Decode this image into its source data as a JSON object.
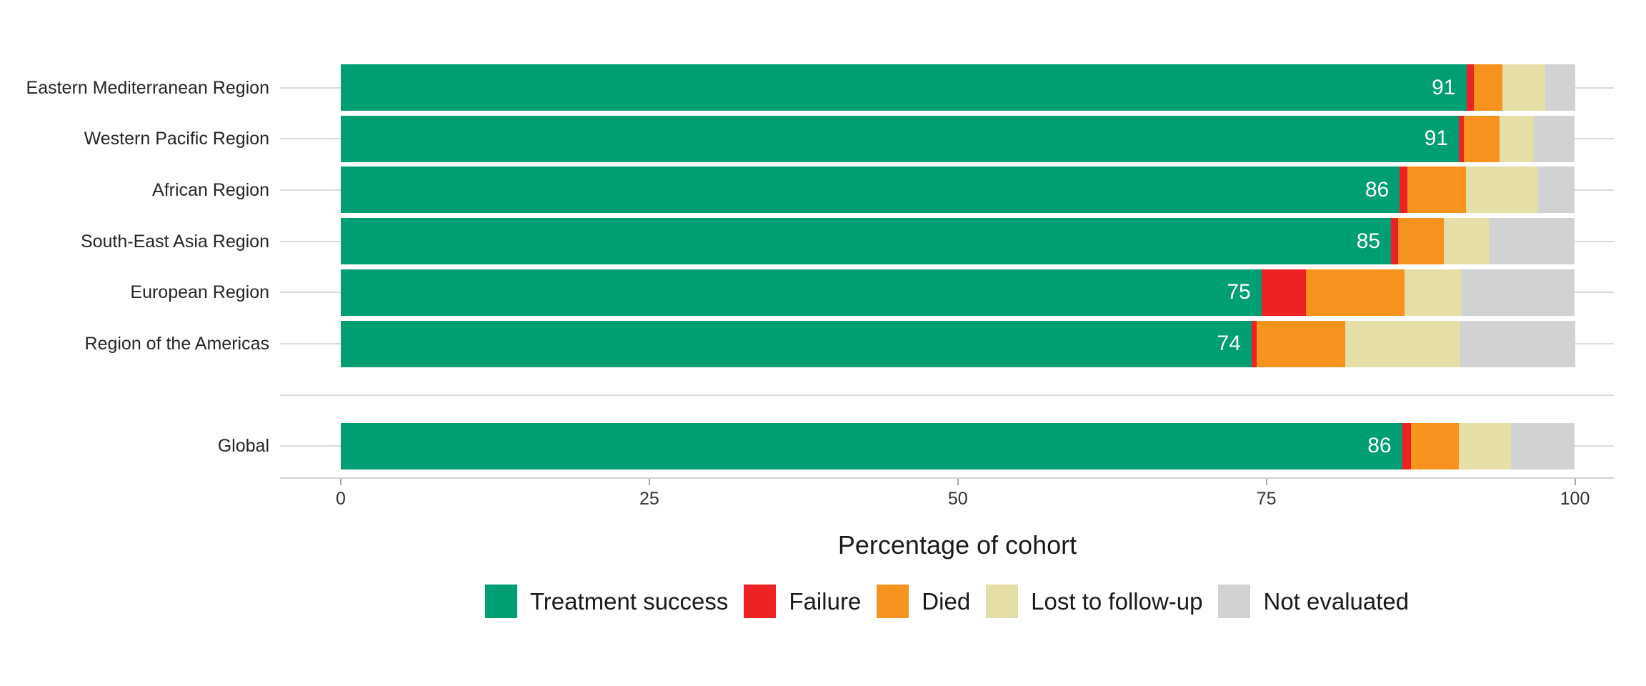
{
  "chart_data": {
    "type": "bar",
    "orientation": "horizontal",
    "stacked": true,
    "title": "",
    "xlabel": "Percentage of cohort",
    "ylabel": "",
    "xlim": [
      0,
      100
    ],
    "x_ticks": [
      0,
      25,
      50,
      75,
      100
    ],
    "grid": "horizontal category gridlines only, light gray",
    "legend_position": "bottom",
    "categories": [
      "Eastern Mediterranean Region",
      "Western Pacific Region",
      "African Region",
      "South-East Asia Region",
      "European Region",
      "Region of the Americas",
      "Global"
    ],
    "separator_after_index": 5,
    "series": [
      {
        "name": "Treatment success",
        "color": "#009E73",
        "values": [
          91.2,
          90.6,
          85.8,
          85.1,
          74.6,
          73.8,
          86.0
        ]
      },
      {
        "name": "Failure",
        "color": "#ED2224",
        "values": [
          0.6,
          0.4,
          0.6,
          0.6,
          3.6,
          0.4,
          0.7
        ]
      },
      {
        "name": "Died",
        "color": "#F6921E",
        "values": [
          2.3,
          2.9,
          4.8,
          3.7,
          8.0,
          7.2,
          3.9
        ]
      },
      {
        "name": "Lost to follow-up",
        "color": "#E5DFA7",
        "values": [
          3.5,
          2.8,
          5.8,
          3.7,
          4.6,
          9.3,
          4.2
        ]
      },
      {
        "name": "Not evaluated",
        "color": "#D1D2D4",
        "values": [
          2.4,
          3.3,
          3.0,
          6.9,
          9.2,
          9.3,
          5.2
        ]
      }
    ],
    "bar_value_labels": [
      "91",
      "91",
      "86",
      "85",
      "75",
      "74",
      "86"
    ],
    "value_label_color": "#FFFFFF",
    "tick_labels": [
      "0",
      "25",
      "50",
      "75",
      "100"
    ]
  }
}
